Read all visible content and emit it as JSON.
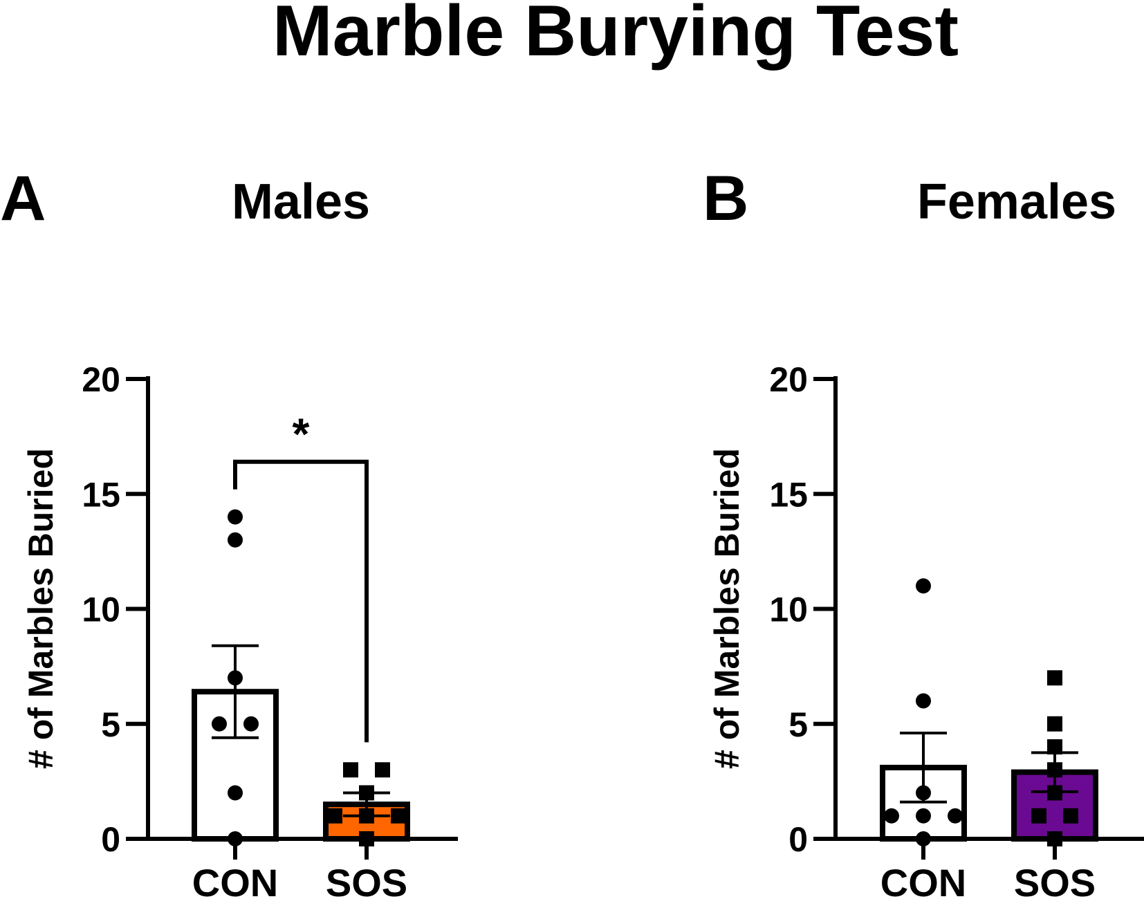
{
  "figure_title": "Marble Burying Test",
  "chart_data": [
    {
      "type": "bar",
      "panel_label": "A",
      "title": "Males",
      "xlabel": "",
      "ylabel": "# of Marbles Buried",
      "ylim": [
        0,
        20
      ],
      "yticks": [
        0,
        5,
        10,
        15,
        20
      ],
      "categories": [
        "CON",
        "SOS"
      ],
      "values": [
        6.4,
        1.5
      ],
      "sem": [
        2.0,
        0.5
      ],
      "colors": [
        "#ffffff",
        "#ff6600"
      ],
      "points": [
        [
          14,
          13,
          7,
          5,
          5,
          2,
          0
        ],
        [
          3,
          3,
          2,
          1,
          1,
          1,
          0
        ]
      ],
      "markers": [
        "circle",
        "square"
      ],
      "significance": {
        "from": "CON",
        "to": "SOS",
        "label": "*"
      }
    },
    {
      "type": "bar",
      "panel_label": "B",
      "title": "Females",
      "xlabel": "",
      "ylabel": "# of Marbles Buried",
      "ylim": [
        0,
        20
      ],
      "yticks": [
        0,
        5,
        10,
        15,
        20
      ],
      "categories": [
        "CON",
        "SOS"
      ],
      "values": [
        3.1,
        2.9
      ],
      "sem": [
        1.5,
        0.85
      ],
      "colors": [
        "#ffffff",
        "#6a0a92"
      ],
      "points": [
        [
          11,
          6,
          2,
          1,
          1,
          1,
          0
        ],
        [
          7,
          5,
          4,
          3,
          2,
          1,
          1,
          0
        ]
      ],
      "markers": [
        "circle",
        "square"
      ]
    }
  ]
}
